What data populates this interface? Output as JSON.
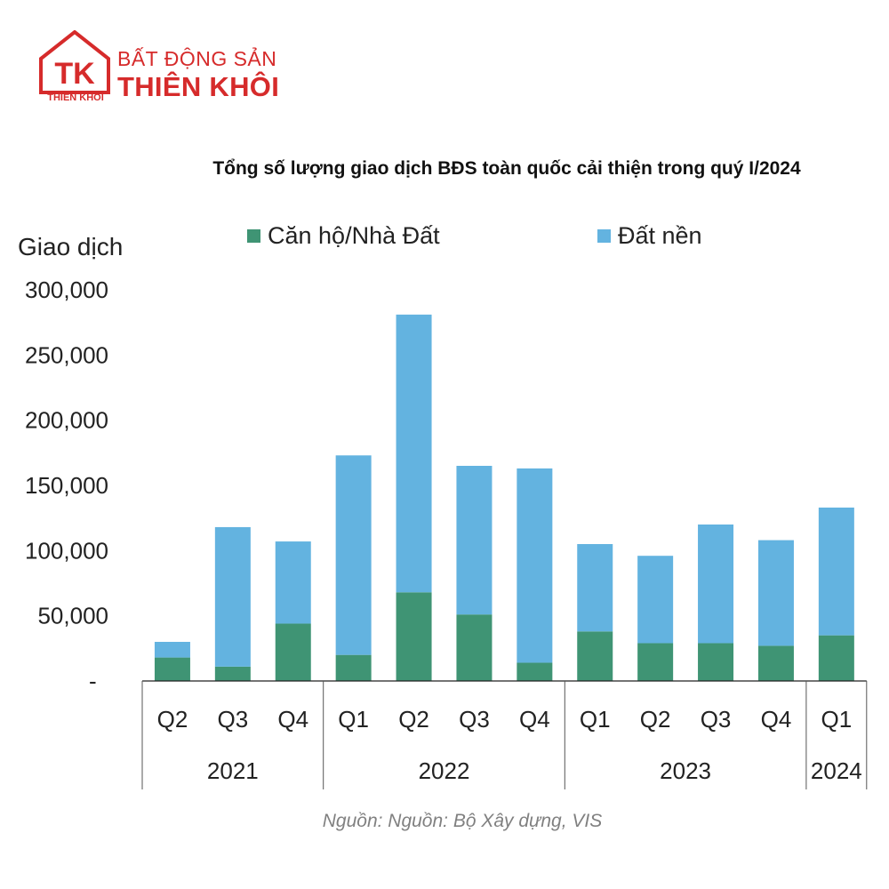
{
  "brand": {
    "line1": "BẤT ĐỘNG SẢN",
    "line2": "THIÊN KHÔI",
    "emblem_caption": "THIEN KHOI",
    "emblem_letters": "TK",
    "color": "#d62b2b"
  },
  "source_note": "Nguồn: Nguồn: Bộ Xây dựng, VIS",
  "chart_data": {
    "type": "bar",
    "stacked": true,
    "title": "Tổng số lượng giao dịch BĐS toàn quốc cải thiện trong quý I/2024",
    "ylabel": "Giao dịch",
    "xlabel": "",
    "ylim": [
      0,
      300000
    ],
    "yticks": [
      0,
      50000,
      100000,
      150000,
      200000,
      250000,
      300000
    ],
    "ytick_labels": [
      "-",
      "50,000",
      "100,000",
      "150,000",
      "200,000",
      "250,000",
      "300,000"
    ],
    "categories": [
      "Q2",
      "Q3",
      "Q4",
      "Q1",
      "Q2",
      "Q3",
      "Q4",
      "Q1",
      "Q2",
      "Q3",
      "Q4",
      "Q1"
    ],
    "groups": [
      {
        "label": "2021",
        "count": 3
      },
      {
        "label": "2022",
        "count": 4
      },
      {
        "label": "2023",
        "count": 4
      },
      {
        "label": "2024",
        "count": 1
      }
    ],
    "legend_position": "top",
    "series": [
      {
        "name": "Căn hộ/Nhà Đất",
        "color": "#3f9474",
        "values": [
          18000,
          11000,
          44000,
          20000,
          68000,
          51000,
          14000,
          38000,
          29000,
          29000,
          27000,
          35000
        ]
      },
      {
        "name": "Đất nền",
        "color": "#63b3e0",
        "values": [
          12000,
          107000,
          63000,
          153000,
          213000,
          114000,
          149000,
          67000,
          67000,
          91000,
          81000,
          98000
        ]
      }
    ]
  }
}
